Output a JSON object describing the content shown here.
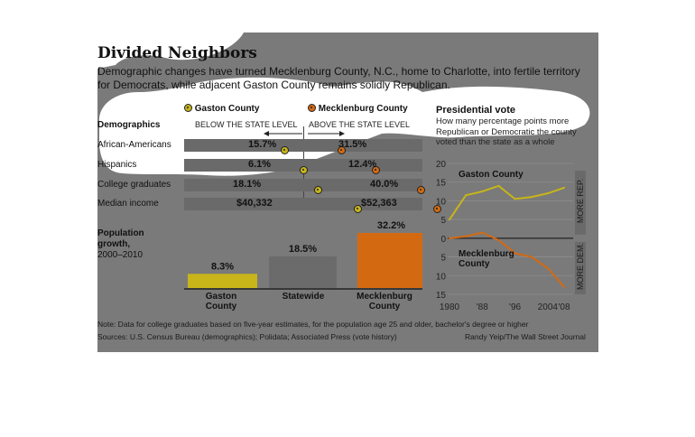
{
  "title": "Divided Neighbors",
  "subtitle_line1": "Demographic changes have turned Mecklenburg County, N.C., home to Charlotte, into fertile territory",
  "subtitle_line2": "for Democrats, while adjacent Gaston County remains solidly Republican.",
  "legend": {
    "gaston": "Gaston County",
    "mecklenburg": "Mecklenburg County"
  },
  "demographics": {
    "heading": "Demographics",
    "below_label": "BELOW THE STATE LEVEL",
    "above_label": "ABOVE THE STATE LEVEL",
    "rows": [
      {
        "label": "African-Americans",
        "gaston": "15.7%",
        "mecklenburg": "31.5%"
      },
      {
        "label": "Hispanics",
        "gaston": "6.1%",
        "mecklenburg": "12.4%"
      },
      {
        "label": "College graduates",
        "gaston": "18.1%",
        "mecklenburg": "40.0%"
      },
      {
        "label": "Median income",
        "gaston": "$40,332",
        "mecklenburg": "$52,363"
      }
    ]
  },
  "population": {
    "label_line1": "Population",
    "label_line2": "growth,",
    "label_line3": "2000–2010"
  },
  "presidential": {
    "heading": "Presidential vote",
    "desc": "How many percentage points more Republican or Democratic the county voted than the state as a whole",
    "gaston_label": "Gaston County",
    "meck_label_line1": "Mecklenburg",
    "meck_label_line2": "County",
    "more_rep": "MORE REP.",
    "more_dem": "MORE DEM."
  },
  "note": "Note: Data for college graduates based on five-year estimates, for the population age 25 and older, bachelor's degree or higher",
  "sources": "Sources: U.S. Census Bureau (demographics); Polidata; Associated Press (vote history)",
  "credit": "Randy Yeip/The Wall Street Journal",
  "colors": {
    "gaston": "#c7b51a",
    "statewide": "#6b6b6b",
    "mecklenburg": "#d36a12",
    "panel": "#7a7a7a"
  },
  "chart_data": [
    {
      "type": "bar",
      "categories": [
        "Gaston County",
        "Statewide",
        "Mecklenburg County"
      ],
      "values": [
        8.3,
        18.5,
        32.2
      ],
      "value_labels": [
        "8.3%",
        "18.5%",
        "32.2%"
      ],
      "ylim": [
        0,
        32.2
      ]
    },
    {
      "type": "line",
      "title": "Presidential vote",
      "x": [
        1980,
        1984,
        1988,
        1992,
        1996,
        2000,
        2004,
        2008
      ],
      "x_tick_labels": [
        "1980",
        "'88",
        "'96",
        "2004",
        "'08"
      ],
      "x_tick_values": [
        1980,
        1988,
        1996,
        2004,
        2008
      ],
      "y_tick_labels": [
        "20",
        "15",
        "10",
        "5",
        "0",
        "5",
        "10",
        "15"
      ],
      "y_tick_values": [
        20,
        15,
        10,
        5,
        0,
        -5,
        -10,
        -15
      ],
      "ylim": [
        -15,
        20
      ],
      "series": [
        {
          "name": "Gaston County",
          "values": [
            5,
            11.5,
            12.5,
            14,
            10.5,
            11,
            12,
            13.5
          ]
        },
        {
          "name": "Mecklenburg County",
          "values": [
            0,
            0.5,
            1.5,
            -0.5,
            -4,
            -5,
            -8,
            -13
          ]
        }
      ]
    }
  ]
}
